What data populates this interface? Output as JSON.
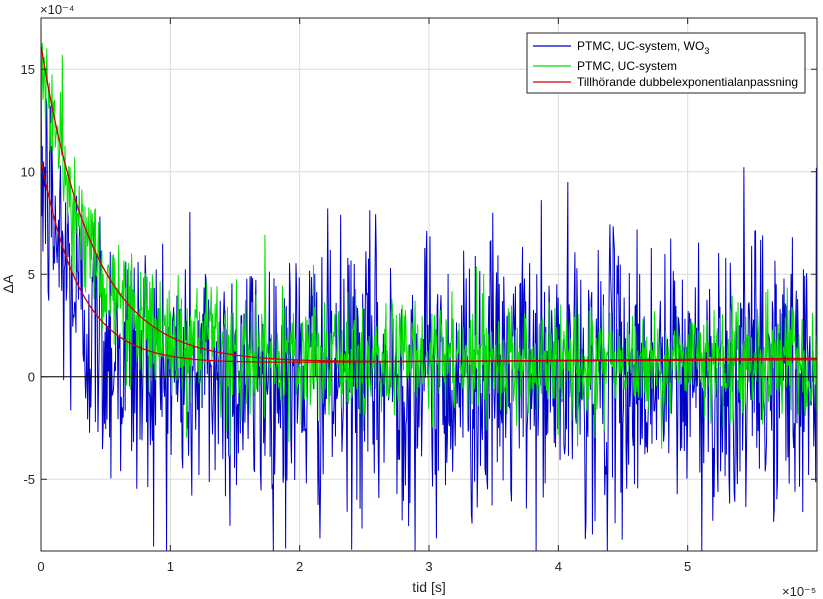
{
  "chart_data": {
    "type": "line",
    "title": "",
    "xlabel": "tid [s]",
    "ylabel": "ΔA",
    "x_exponent_label": "×10⁻⁵",
    "y_exponent_label": "×10⁻⁴",
    "xlim": [
      0,
      6
    ],
    "ylim": [
      -8.5,
      17.5
    ],
    "x_ticks": [
      0,
      1,
      2,
      3,
      4,
      5
    ],
    "x_tick_labels": [
      "0",
      "1",
      "2",
      "3",
      "4",
      "5"
    ],
    "y_ticks": [
      -5,
      0,
      5,
      10,
      15
    ],
    "y_tick_labels": [
      "-5",
      "0",
      "5",
      "10",
      "15"
    ],
    "grid": true,
    "legend_position": "top-right",
    "zero_line": 0,
    "series": [
      {
        "name": "PTMC, UC-system, WO3",
        "legend_main": "PTMC, UC-system, WO",
        "legend_sub": "3",
        "color": "#0000cc",
        "kind": "noisy",
        "model": {
          "offset": 0.0,
          "a1": 10.5,
          "tau1": 0.28,
          "a2": 0.0,
          "tau2": 1.0
        },
        "noise_sd": 3.4,
        "n_points": 1200
      },
      {
        "name": "PTMC, UC-system",
        "color": "#00e000",
        "kind": "noisy",
        "model": {
          "offset": 0.7,
          "a1": 15.0,
          "tau1": 0.38,
          "a2": 0.0,
          "tau2": 1.0
        },
        "noise_sd": 1.5,
        "n_points": 1200
      },
      {
        "name": "Tillhörande dubbelexponentialanpassning",
        "color": "#cc0000",
        "kind": "fit",
        "fits": [
          {
            "offset": 0.65,
            "a1": 15.5,
            "tau1": 0.4,
            "drift": 0.03
          },
          {
            "offset": 0.6,
            "a1": 10.0,
            "tau1": 0.3,
            "drift": 0.05
          }
        ]
      }
    ]
  }
}
